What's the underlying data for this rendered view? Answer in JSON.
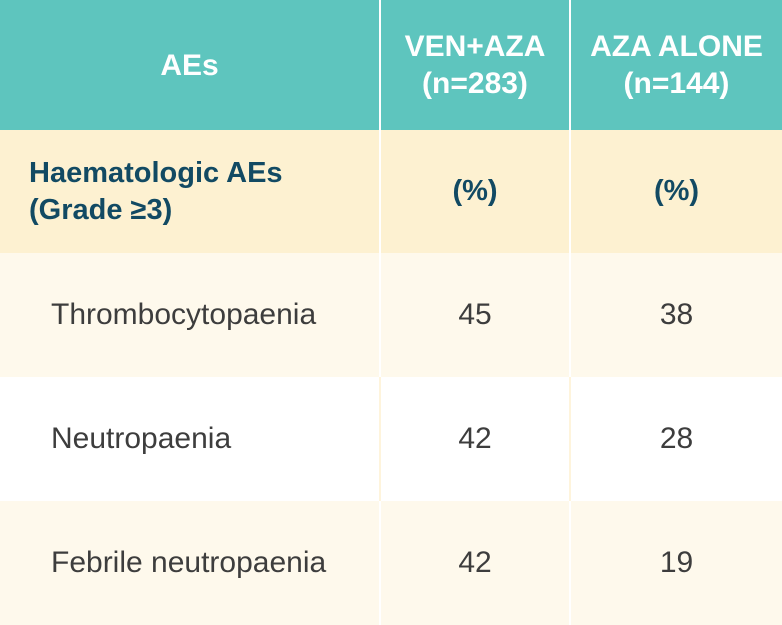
{
  "table": {
    "header": {
      "col1": "AEs",
      "col2_line1": "VEN+AZA",
      "col2_line2": "(n=283)",
      "col3_line1": "AZA ALONE",
      "col3_line2": "(n=144)"
    },
    "section": {
      "title_line1": "Haematologic AEs",
      "title_line2": "(Grade ≥3)",
      "unit_col2": "(%)",
      "unit_col3": "(%)"
    },
    "rows": [
      {
        "label": "Thrombocytopaenia",
        "ven_aza": "45",
        "aza_alone": "38"
      },
      {
        "label": "Neutropaenia",
        "ven_aza": "42",
        "aza_alone": "28"
      },
      {
        "label": "Febrile neutropaenia",
        "ven_aza": "42",
        "aza_alone": "19"
      }
    ]
  },
  "colors": {
    "header_bg": "#5ec5be",
    "section_bg": "#fdf1d1",
    "section_text": "#124a63",
    "row_shade": "#fef9ec"
  }
}
